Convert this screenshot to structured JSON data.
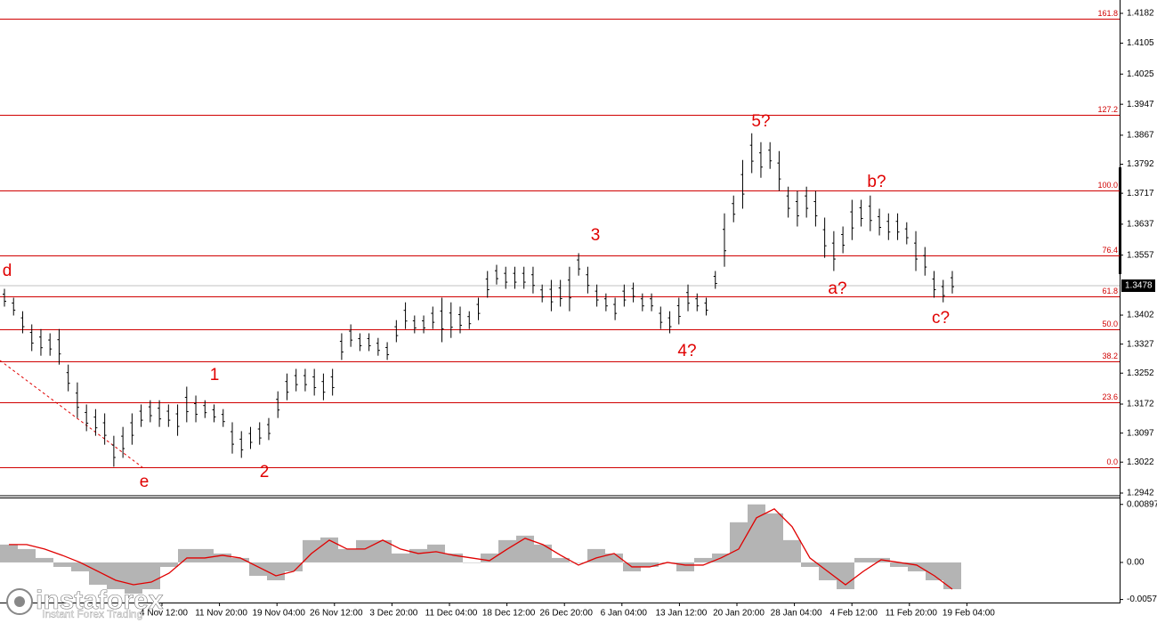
{
  "chart_data": [
    {
      "type": "ohlc",
      "ylim": [
        1.29374,
        1.42165
      ],
      "yticks": [
        1.4182,
        1.4105,
        1.4025,
        1.3947,
        1.3867,
        1.3792,
        1.3717,
        1.3637,
        1.3557,
        1.3402,
        1.3327,
        1.3252,
        1.3172,
        1.3097,
        1.3022,
        1.2942
      ],
      "current_price": 1.3478,
      "fib_labels": [
        "161.8",
        "127.2",
        "100.0",
        "76.4",
        "61.8",
        "50.0",
        "38.2",
        "23.6",
        "0.0"
      ],
      "fib_prices": [
        1.4168,
        1.392,
        1.3724,
        1.3556,
        1.345,
        1.3365,
        1.3283,
        1.3177,
        1.3009
      ],
      "x_labels": [
        "4 Nov 12:00",
        "11 Nov 20:00",
        "19 Nov 04:00",
        "26 Nov 12:00",
        "3 Dec 20:00",
        "11 Dec 04:00",
        "18 Dec 12:00",
        "26 Dec 20:00",
        "6 Jan 04:00",
        "13 Jan 12:00",
        "20 Jan 20:00",
        "28 Jan 04:00",
        "4 Feb 12:00",
        "11 Feb 20:00",
        "19 Feb 04:00"
      ],
      "annotations": [
        "d",
        "e",
        "1",
        "2",
        "3",
        "4?",
        "5?",
        "a?",
        "b?",
        "c?"
      ],
      "color": "#000000",
      "fib_color": "#d00000",
      "high": [
        1.347,
        1.3447,
        1.3412,
        1.3378,
        1.3366,
        1.3355,
        1.3366,
        1.3274,
        1.3228,
        1.3171,
        1.3159,
        1.3148,
        1.309,
        1.3113,
        1.3148,
        1.3171,
        1.3182,
        1.3182,
        1.3171,
        1.3171,
        1.3217,
        1.3194,
        1.3182,
        1.3171,
        1.3159,
        1.3125,
        1.3102,
        1.3113,
        1.3125,
        1.3136,
        1.3205,
        1.3251,
        1.3263,
        1.3263,
        1.3263,
        1.3251,
        1.3263,
        1.3355,
        1.3378,
        1.3355,
        1.3355,
        1.3343,
        1.3332,
        1.3389,
        1.3435,
        1.3401,
        1.3401,
        1.3424,
        1.3447,
        1.3435,
        1.3424,
        1.3412,
        1.3447,
        1.3516,
        1.3532,
        1.3527,
        1.3527,
        1.3527,
        1.3527,
        1.3481,
        1.3493,
        1.3493,
        1.3527,
        1.3562,
        1.3527,
        1.3481,
        1.3458,
        1.3447,
        1.3481,
        1.3486,
        1.3458,
        1.3458,
        1.3424,
        1.3412,
        1.3447,
        1.3481,
        1.3458,
        1.3447,
        1.3516,
        1.3665,
        1.3711,
        1.3803,
        1.3872,
        1.3849,
        1.3849,
        1.3826,
        1.3734,
        1.3723,
        1.3734,
        1.3723,
        1.3654,
        1.3619,
        1.3631,
        1.37,
        1.37,
        1.3711,
        1.3677,
        1.3665,
        1.3665,
        1.3642,
        1.3619,
        1.3578,
        1.3516,
        1.3493,
        1.3516
      ],
      "low": [
        1.3424,
        1.3401,
        1.3355,
        1.3309,
        1.3297,
        1.3297,
        1.3274,
        1.3205,
        1.3136,
        1.3102,
        1.309,
        1.3067,
        1.301,
        1.3033,
        1.3067,
        1.3113,
        1.3125,
        1.3113,
        1.3113,
        1.309,
        1.3125,
        1.3125,
        1.3136,
        1.3125,
        1.3113,
        1.3044,
        1.3033,
        1.3056,
        1.3067,
        1.3079,
        1.3136,
        1.3182,
        1.3205,
        1.3205,
        1.3194,
        1.3182,
        1.3194,
        1.3286,
        1.332,
        1.3309,
        1.3309,
        1.3297,
        1.3286,
        1.3332,
        1.3366,
        1.3355,
        1.3355,
        1.3366,
        1.3332,
        1.3343,
        1.3355,
        1.3366,
        1.3389,
        1.3447,
        1.3481,
        1.347,
        1.347,
        1.347,
        1.3458,
        1.3435,
        1.3412,
        1.3424,
        1.3412,
        1.3504,
        1.3458,
        1.3424,
        1.3412,
        1.3389,
        1.3424,
        1.3435,
        1.3412,
        1.3412,
        1.3366,
        1.3355,
        1.3378,
        1.3412,
        1.3412,
        1.3401,
        1.347,
        1.3527,
        1.3642,
        1.3677,
        1.3769,
        1.3757,
        1.378,
        1.3723,
        1.3654,
        1.3631,
        1.3654,
        1.3631,
        1.355,
        1.3516,
        1.3562,
        1.3596,
        1.3631,
        1.3619,
        1.3608,
        1.3596,
        1.3596,
        1.3585,
        1.3516,
        1.3504,
        1.3447,
        1.3435,
        1.3458
      ]
    },
    {
      "type": "macd",
      "ylim": [
        -0.0062,
        0.0099
      ],
      "yticks": [
        0.00897,
        {
          "value": 0,
          "label": "0.00"
        },
        -0.00573
      ],
      "histogram": {
        "color": "#b4b4b4",
        "values": [
          0.00276,
          0.00207,
          0.00069,
          -0.00069,
          -0.00138,
          -0.00345,
          -0.00414,
          -0.00483,
          -0.00414,
          -0.00069,
          0.00207,
          0.00207,
          0.00138,
          0.00069,
          -0.00207,
          -0.00276,
          -0.00138,
          0.00345,
          0.00386,
          0.00207,
          0.00345,
          0.00345,
          0.00138,
          0.00207,
          0.00276,
          0.00138,
          0,
          0.00138,
          0.00345,
          0.00414,
          0.00276,
          0.00069,
          0,
          0.00207,
          0.00138,
          -0.00138,
          -0.00069,
          0,
          -0.00138,
          0.00069,
          0.00138,
          0.00621,
          0.00897,
          0.00759,
          0.00345,
          -0.00069,
          -0.00276,
          -0.00414,
          0.00069,
          0.00069,
          -0.00069,
          -0.00138,
          -0.00276,
          -0.00414
        ]
      },
      "signal": {
        "color": "#e00000",
        "values": [
          0.00276,
          0.00276,
          0.00207,
          0.0011,
          0,
          -0.00138,
          -0.00276,
          -0.00345,
          -0.00304,
          -0.00166,
          0.00069,
          0.00069,
          0.0011,
          0.00069,
          -0.00069,
          -0.00207,
          -0.00138,
          0.00138,
          0.00345,
          0.00207,
          0.00207,
          0.00345,
          0.00207,
          0.00138,
          0.00166,
          0.0011,
          0.00069,
          0.00028,
          0.00207,
          0.00373,
          0.00276,
          0.0011,
          -0.00041,
          0.00069,
          0.00138,
          -0.00069,
          -0.00069,
          0,
          -0.00041,
          -0.00041,
          0.00069,
          0.00207,
          0.0069,
          0.00828,
          0.00552,
          0.00069,
          -0.00138,
          -0.00345,
          -0.00138,
          0.00041,
          0,
          -0.00041,
          -0.00207,
          -0.00414
        ]
      }
    }
  ],
  "logo": {
    "name": "instaforex",
    "tagline": "Instant Forex Trading"
  }
}
